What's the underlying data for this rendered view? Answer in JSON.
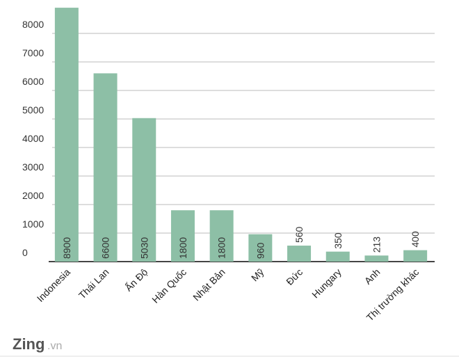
{
  "chart_data": {
    "type": "bar",
    "categories": [
      "Indonesia",
      "Thái Lan",
      "Ấn Độ",
      "Hàn Quốc",
      "Nhật Bản",
      "Mỹ",
      "Đức",
      "Hungary",
      "Anh",
      "Thị trường khác"
    ],
    "values": [
      8900,
      6600,
      5030,
      1800,
      1800,
      960,
      560,
      350,
      213,
      400
    ],
    "color": "#8dbfa6",
    "ylim": [
      0,
      9000
    ],
    "yticks": [
      0,
      1000,
      2000,
      3000,
      4000,
      5000,
      6000,
      7000,
      8000
    ],
    "grid": true
  },
  "logo": {
    "name": "Zing",
    "suffix": ".vn"
  }
}
